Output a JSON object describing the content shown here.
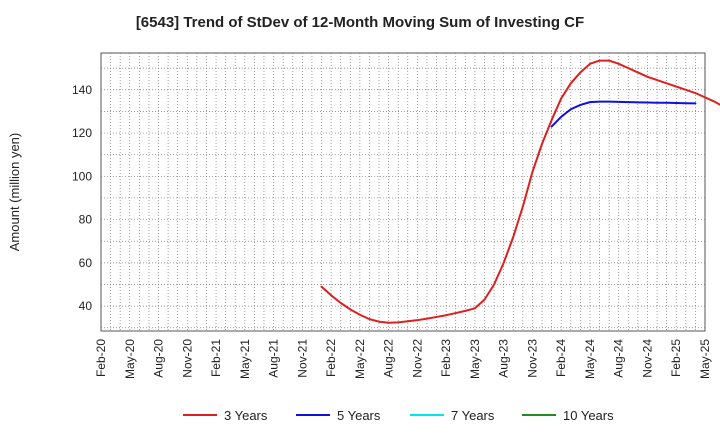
{
  "chart_data": {
    "type": "line",
    "title": "[6543]  Trend of StDev of 12-Month Moving Sum of Investing CF",
    "xlabel": "",
    "ylabel": "Amount (million yen)",
    "ylim": [
      28.5,
      157
    ],
    "yticks": [
      40,
      60,
      80,
      100,
      120,
      140
    ],
    "xticks": [
      "Feb-20",
      "May-20",
      "Aug-20",
      "Nov-20",
      "Feb-21",
      "May-21",
      "Aug-21",
      "Nov-21",
      "Feb-22",
      "May-22",
      "Aug-22",
      "Nov-22",
      "Feb-23",
      "May-23",
      "Aug-23",
      "Nov-23",
      "Feb-24",
      "May-24",
      "Aug-24",
      "Nov-24",
      "Feb-25",
      "May-25"
    ],
    "grid": true,
    "legend_position": "bottom",
    "series": [
      {
        "name": "3 Years",
        "color": "#dd1f1f",
        "start": "Jan-22",
        "values": [
          49,
          45,
          41.5,
          38.5,
          36,
          34,
          32.8,
          32.3,
          32.5,
          33,
          33.5,
          34.2,
          35,
          35.8,
          36.8,
          37.8,
          39,
          43,
          50,
          60,
          72,
          86,
          102,
          115,
          126,
          136,
          143,
          148,
          152,
          153.5,
          153.5,
          152,
          150,
          148,
          146,
          144.5,
          143,
          141.5,
          140,
          138.5,
          136.5,
          134.5,
          132,
          129.5
        ]
      },
      {
        "name": "5 Years",
        "color": "#1010dd",
        "start": "Jan-24",
        "values": [
          123,
          127.5,
          131,
          133,
          134.3,
          134.5,
          134.5,
          134.4,
          134.3,
          134.2,
          134.1,
          134,
          134,
          133.9,
          133.8,
          133.7
        ]
      },
      {
        "name": "7 Years",
        "color": "#00e5ee",
        "start": "",
        "values": []
      },
      {
        "name": "10 Years",
        "color": "#228b22",
        "start": "",
        "values": []
      }
    ]
  }
}
